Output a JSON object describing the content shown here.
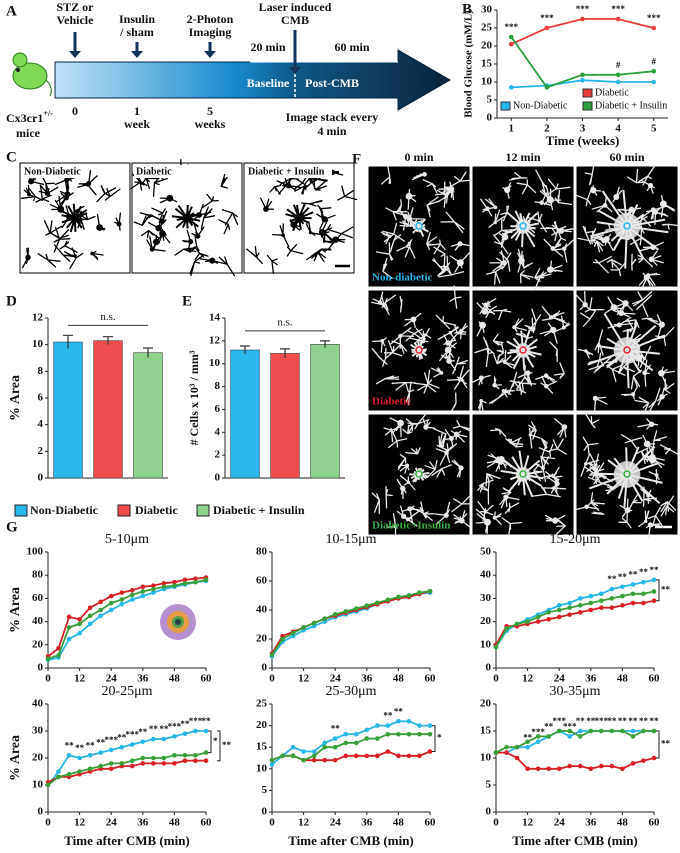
{
  "panel_labels": [
    "A",
    "B",
    "C",
    "D",
    "E",
    "F",
    "G"
  ],
  "timeline": {
    "events": [
      {
        "lines": [
          "STZ or",
          "Vehicle"
        ]
      },
      {
        "lines": [
          "Insulin",
          "/ sham"
        ]
      },
      {
        "lines": [
          "2-Photon",
          "Imaging"
        ]
      },
      {
        "lines": [
          "Laser induced",
          "CMB"
        ]
      }
    ],
    "ticks": [
      {
        "lines": [
          "0"
        ]
      },
      {
        "lines": [
          "1",
          "week"
        ]
      },
      {
        "lines": [
          "5",
          "weeks"
        ]
      }
    ],
    "phases": [
      "Baseline",
      "Post-CMB"
    ],
    "times": [
      "20 min",
      "60 min"
    ],
    "acquisition": [
      "Image stack every",
      "4 min"
    ],
    "mouse": {
      "strain": "Cx3cr1",
      "superscript": "+/-",
      "line2": "mice"
    }
  },
  "images_c": {
    "labels": [
      "Non-Diabetic",
      "Diabetic",
      "Diabetic + Insulin"
    ]
  },
  "images_f": {
    "columns": [
      "0 min",
      "12 min",
      "60 min"
    ],
    "rows": [
      "Non-diabetic",
      "Diabetic",
      "Diabetic+Insulin"
    ],
    "colors": [
      "#29b6e8",
      "#e0202a",
      "#3cb043"
    ]
  },
  "chart_data": [
    {
      "type": "line",
      "ylabel": "Blood Glucose (mM/L)",
      "xlabel": "Time (weeks)",
      "x": [
        1,
        2,
        3,
        4,
        5
      ],
      "xlim": [
        0.6,
        5.4
      ],
      "xticks": [
        1,
        2,
        3,
        4,
        5
      ],
      "ylim": [
        0,
        30
      ],
      "yticks": [
        0,
        5,
        10,
        15,
        20,
        25,
        30
      ],
      "series": [
        {
          "name": "Non-Diabetic",
          "color": "#29b6e8",
          "values": [
            8.5,
            9,
            10.5,
            10,
            10
          ]
        },
        {
          "name": "Diabetic",
          "color": "#e8403c",
          "values": [
            20.5,
            25,
            27.5,
            27.5,
            25
          ]
        },
        {
          "name": "Diabetic + Insulin",
          "color": "#2e9e3e",
          "values": [
            22.5,
            8.5,
            12,
            12,
            13
          ]
        }
      ],
      "annotations": [
        {
          "x": 1,
          "label": "***",
          "series": 2
        },
        {
          "x": 2,
          "label": "***",
          "series": 1
        },
        {
          "x": 3,
          "label": "***",
          "series": 1
        },
        {
          "x": 4,
          "label": "***",
          "series": 1
        },
        {
          "x": 5,
          "label": "***",
          "series": 1
        },
        {
          "x": 4,
          "label": "#",
          "series": 2
        },
        {
          "x": 5,
          "label": "#",
          "series": 2
        }
      ]
    },
    {
      "type": "bar",
      "ylabel": "% Area",
      "categories": [
        "Non-Diabetic",
        "Diabetic",
        "Diabetic + Insulin"
      ],
      "colors": [
        "#2ab7ec",
        "#f04e4e",
        "#8fd18f"
      ],
      "values": [
        10.2,
        10.3,
        9.4
      ],
      "errors": [
        0.5,
        0.3,
        0.35
      ],
      "ylim": [
        0,
        12
      ],
      "yticks": [
        0,
        2,
        4,
        6,
        8,
        10,
        12
      ],
      "annotation": "n.s."
    },
    {
      "type": "bar",
      "ylabel": "# Cells x 10³ / mm³",
      "colors": [
        "#2ab7ec",
        "#f04e4e",
        "#8fd18f"
      ],
      "values": [
        11.2,
        10.9,
        11.7
      ],
      "errors": [
        0.35,
        0.4,
        0.3
      ],
      "ylim": [
        0,
        14
      ],
      "yticks": [
        0,
        2,
        4,
        6,
        8,
        10,
        12,
        14
      ],
      "annotation": "n.s."
    },
    {
      "type": "line",
      "title": "5-10μm",
      "ylabel": "% Area",
      "x": [
        0,
        4,
        8,
        12,
        16,
        20,
        24,
        28,
        32,
        36,
        40,
        44,
        48,
        52,
        56,
        60
      ],
      "xlim": [
        0,
        60
      ],
      "xticks": [
        0,
        12,
        24,
        36,
        48,
        60
      ],
      "ylim": [
        0,
        100
      ],
      "yticks": [
        0,
        20,
        40,
        60,
        80,
        100
      ],
      "series": [
        {
          "color": "#29b6e8",
          "values": [
            7,
            9,
            25,
            30,
            38,
            45,
            50,
            55,
            59,
            62,
            65,
            68,
            70,
            72,
            74,
            75
          ]
        },
        {
          "color": "#d92027",
          "values": [
            10,
            17,
            44,
            42,
            52,
            57,
            62,
            65,
            67,
            70,
            71,
            73,
            74,
            76,
            77,
            78
          ]
        },
        {
          "color": "#3a9e3a",
          "values": [
            8,
            11,
            35,
            38,
            45,
            50,
            56,
            59,
            63,
            66,
            68,
            70,
            71,
            73,
            74,
            76
          ]
        }
      ]
    },
    {
      "type": "line",
      "title": "10-15μm",
      "x": [
        0,
        4,
        8,
        12,
        16,
        20,
        24,
        28,
        32,
        36,
        40,
        44,
        48,
        52,
        56,
        60
      ],
      "xlim": [
        0,
        60
      ],
      "xticks": [
        0,
        12,
        24,
        36,
        48,
        60
      ],
      "ylim": [
        0,
        80
      ],
      "yticks": [
        0,
        20,
        40,
        60,
        80
      ],
      "series": [
        {
          "color": "#29b6e8",
          "values": [
            8,
            18,
            22,
            26,
            29,
            32,
            35,
            37,
            39,
            41,
            44,
            46,
            48,
            50,
            51,
            52
          ]
        },
        {
          "color": "#d92027",
          "values": [
            10,
            22,
            25,
            28,
            31,
            34,
            36,
            38,
            40,
            42,
            44,
            46,
            48,
            49,
            51,
            53
          ]
        },
        {
          "color": "#3a9e3a",
          "values": [
            9,
            20,
            24,
            28,
            31,
            34,
            37,
            39,
            41,
            43,
            45,
            47,
            49,
            50,
            52,
            53
          ]
        }
      ]
    },
    {
      "type": "line",
      "title": "15-20μm",
      "x": [
        0,
        4,
        8,
        12,
        16,
        20,
        24,
        28,
        32,
        36,
        40,
        44,
        48,
        52,
        56,
        60
      ],
      "xlim": [
        0,
        60
      ],
      "xticks": [
        0,
        12,
        24,
        36,
        48,
        60
      ],
      "ylim": [
        0,
        50
      ],
      "yticks": [
        0,
        10,
        20,
        30,
        40,
        50
      ],
      "series": [
        {
          "color": "#29b6e8",
          "values": [
            9,
            16,
            19,
            21,
            23,
            25,
            27,
            28,
            30,
            31,
            32,
            34,
            35,
            36,
            37,
            38
          ]
        },
        {
          "color": "#d92027",
          "values": [
            10,
            18,
            18,
            19,
            20,
            21,
            22,
            23,
            24,
            25,
            26,
            26,
            27,
            28,
            28,
            29
          ]
        },
        {
          "color": "#3a9e3a",
          "values": [
            9,
            17,
            19,
            20,
            22,
            24,
            25,
            26,
            27,
            28,
            29,
            30,
            31,
            32,
            32,
            33
          ]
        }
      ],
      "annotations": [
        {
          "x": 44,
          "label": "**",
          "series": 0
        },
        {
          "x": 48,
          "label": "**",
          "series": 0
        },
        {
          "x": 52,
          "label": "**",
          "series": 0
        },
        {
          "x": 56,
          "label": "**",
          "series": 0
        },
        {
          "x": 60,
          "label": "**",
          "series": 0
        }
      ],
      "brackets": [
        {
          "label": "**",
          "series": [
            0,
            1
          ]
        }
      ]
    },
    {
      "type": "line",
      "title": "20-25μm",
      "ylabel": "% Area",
      "xlabel": "Time after CMB (min)",
      "x": [
        0,
        4,
        8,
        12,
        16,
        20,
        24,
        28,
        32,
        36,
        40,
        44,
        48,
        52,
        56,
        60
      ],
      "xlim": [
        0,
        60
      ],
      "xticks": [
        0,
        12,
        24,
        36,
        48,
        60
      ],
      "ylim": [
        0,
        40
      ],
      "yticks": [
        0,
        10,
        20,
        30,
        40
      ],
      "series": [
        {
          "color": "#29b6e8",
          "values": [
            10,
            15,
            21,
            20,
            21,
            22,
            23,
            24,
            25,
            26,
            27,
            27,
            28,
            29,
            30,
            30
          ]
        },
        {
          "color": "#d92027",
          "values": [
            11,
            13,
            13,
            14,
            15,
            16,
            16,
            17,
            17,
            18,
            18,
            18,
            18,
            19,
            19,
            19
          ]
        },
        {
          "color": "#3a9e3a",
          "values": [
            10,
            13,
            14,
            15,
            16,
            17,
            18,
            18,
            19,
            20,
            20,
            20,
            21,
            21,
            21,
            22
          ]
        }
      ],
      "annotations": [
        {
          "x": 8,
          "label": "**",
          "series": 0
        },
        {
          "x": 12,
          "label": "**",
          "series": 0
        },
        {
          "x": 16,
          "label": "**",
          "series": 0
        },
        {
          "x": 20,
          "label": "**",
          "series": 0
        },
        {
          "x": 24,
          "label": "***",
          "series": 0
        },
        {
          "x": 28,
          "label": "**",
          "series": 0
        },
        {
          "x": 32,
          "label": "***",
          "series": 0
        },
        {
          "x": 36,
          "label": "**",
          "series": 0
        },
        {
          "x": 40,
          "label": "**",
          "series": 0
        },
        {
          "x": 44,
          "label": "**",
          "series": 0
        },
        {
          "x": 48,
          "label": "***",
          "series": 0
        },
        {
          "x": 52,
          "label": "**",
          "series": 0
        },
        {
          "x": 56,
          "label": "***",
          "series": 0
        },
        {
          "x": 60,
          "label": "**",
          "series": 0
        }
      ],
      "brackets": [
        {
          "label": "*",
          "series": [
            0,
            2
          ]
        },
        {
          "label": "**",
          "series": [
            0,
            1
          ]
        }
      ]
    },
    {
      "type": "line",
      "title": "25-30μm",
      "xlabel": "Time after CMB (min)",
      "x": [
        0,
        4,
        8,
        12,
        16,
        20,
        24,
        28,
        32,
        36,
        40,
        44,
        48,
        52,
        56,
        60
      ],
      "xlim": [
        0,
        60
      ],
      "xticks": [
        0,
        12,
        24,
        36,
        48,
        60
      ],
      "ylim": [
        0,
        25
      ],
      "yticks": [
        0,
        5,
        10,
        15,
        20,
        25
      ],
      "series": [
        {
          "color": "#29b6e8",
          "values": [
            11,
            13,
            15,
            14,
            14,
            16,
            17,
            18,
            18,
            19,
            20,
            20,
            21,
            21,
            20,
            20
          ]
        },
        {
          "color": "#d92027",
          "values": [
            12,
            13,
            13,
            12,
            12,
            12,
            12,
            13,
            13,
            13,
            13,
            14,
            13,
            13,
            13,
            14
          ]
        },
        {
          "color": "#3a9e3a",
          "values": [
            12,
            13,
            13,
            12,
            13,
            15,
            15,
            16,
            16,
            17,
            17,
            18,
            18,
            18,
            18,
            18
          ]
        }
      ],
      "annotations": [
        {
          "x": 24,
          "label": "**",
          "series": 0
        },
        {
          "x": 44,
          "label": "**",
          "series": 0
        },
        {
          "x": 48,
          "label": "**",
          "series": 0
        }
      ],
      "brackets": [
        {
          "label": "*",
          "series": [
            0,
            1
          ]
        }
      ]
    },
    {
      "type": "line",
      "title": "30-35μm",
      "xlabel": "Time after CMB (min)",
      "x": [
        0,
        4,
        8,
        12,
        16,
        20,
        24,
        28,
        32,
        36,
        40,
        44,
        48,
        52,
        56,
        60
      ],
      "xlim": [
        0,
        60
      ],
      "xticks": [
        0,
        12,
        24,
        36,
        48,
        60
      ],
      "ylim": [
        0,
        20
      ],
      "yticks": [
        0,
        5,
        10,
        15,
        20
      ],
      "series": [
        {
          "color": "#29b6e8",
          "values": [
            11,
            11,
            12,
            12,
            13,
            14,
            15,
            14,
            15,
            15,
            15,
            15,
            15,
            15,
            15,
            15
          ]
        },
        {
          "color": "#d92027",
          "values": [
            11,
            11,
            10,
            8,
            8,
            8,
            8,
            8.5,
            8.5,
            8,
            8.5,
            8.5,
            8,
            9,
            9.5,
            10
          ]
        },
        {
          "color": "#3a9e3a",
          "values": [
            11,
            12,
            12,
            13,
            14,
            14,
            15,
            15,
            14,
            15,
            15,
            15,
            15,
            14,
            15,
            15
          ]
        }
      ],
      "annotations": [
        {
          "x": 12,
          "label": "**",
          "series": 0
        },
        {
          "x": 16,
          "label": "***",
          "series": 0
        },
        {
          "x": 20,
          "label": "**",
          "series": 0
        },
        {
          "x": 24,
          "label": "***",
          "series": 0
        },
        {
          "x": 28,
          "label": "***",
          "series": 0
        },
        {
          "x": 32,
          "label": "**",
          "series": 0
        },
        {
          "x": 36,
          "label": "**",
          "series": 0
        },
        {
          "x": 40,
          "label": "***",
          "series": 0
        },
        {
          "x": 44,
          "label": "**",
          "series": 0
        },
        {
          "x": 48,
          "label": "**",
          "series": 0
        },
        {
          "x": 52,
          "label": "**",
          "series": 0
        },
        {
          "x": 56,
          "label": "**",
          "series": 0
        },
        {
          "x": 60,
          "label": "**",
          "series": 0
        }
      ],
      "brackets": [
        {
          "label": "**",
          "series": [
            0,
            1
          ]
        }
      ]
    }
  ]
}
